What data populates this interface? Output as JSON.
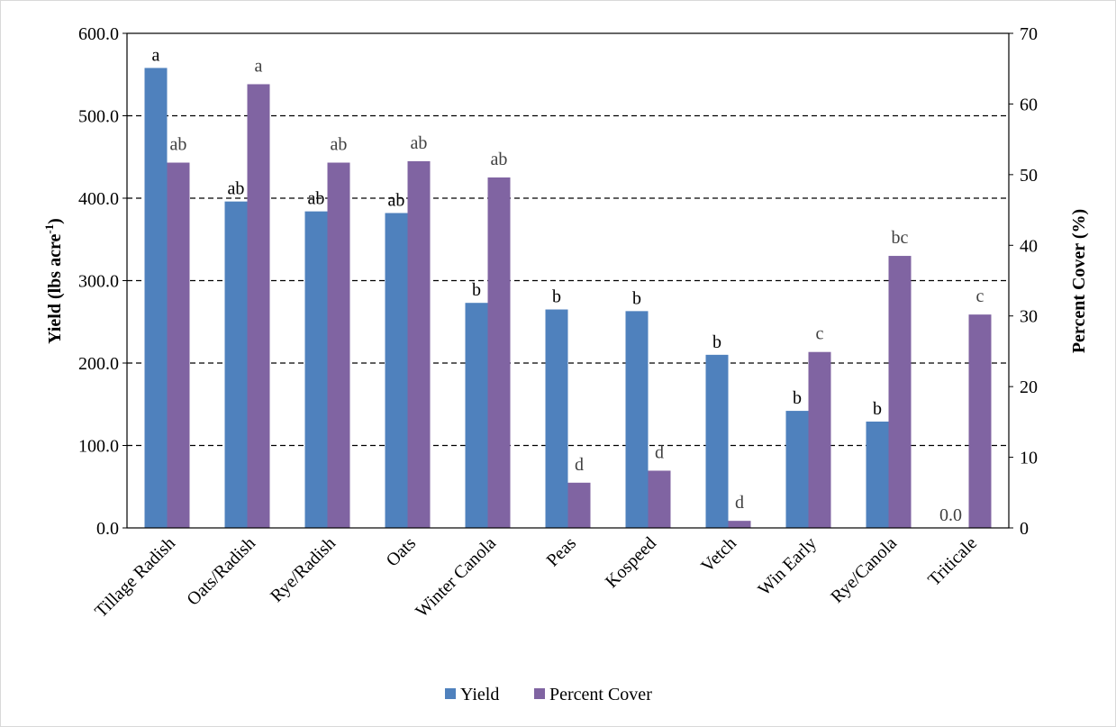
{
  "chart_data": {
    "type": "bar",
    "categories": [
      "Tillage Radish",
      "Oats/Radish",
      "Rye/Radish",
      "Oats",
      "Winter Canola",
      "Peas",
      "Kospeed",
      "Vetch",
      "Win Early",
      "Rye/Canola",
      "Triticale"
    ],
    "series": [
      {
        "name": "Yield",
        "axis": "left",
        "color": "#4f81bd",
        "values": [
          558,
          396,
          384,
          382,
          273,
          265,
          263,
          210,
          142,
          129,
          0
        ],
        "labels": [
          "a",
          "ab",
          "ab",
          "ab",
          "b",
          "b",
          "b",
          "b",
          "b",
          "b",
          "0.0"
        ]
      },
      {
        "name": "Percent Cover",
        "axis": "right",
        "color": "#8064a2",
        "values": [
          51.7,
          62.8,
          51.7,
          51.9,
          49.6,
          6.4,
          8.1,
          1.0,
          24.9,
          38.5,
          30.2
        ],
        "labels": [
          "ab",
          "a",
          "ab",
          "ab",
          "ab",
          "d",
          "d",
          "d",
          "c",
          "bc",
          "c"
        ]
      }
    ],
    "ylabel": "Yield (lbs acre-1)",
    "ylabel_main": "Yield (lbs acre",
    "ylabel_sup": "-1",
    "ylabel_close": ")",
    "y2label": "Percent Cover (%)",
    "ylim": [
      0,
      600
    ],
    "y2lim": [
      0,
      70
    ],
    "yticks": [
      "0.0",
      "100.0",
      "200.0",
      "300.0",
      "400.0",
      "500.0",
      "600.0"
    ],
    "y2ticks": [
      "0",
      "10",
      "20",
      "30",
      "40",
      "50",
      "60",
      "70"
    ],
    "grid": "dashed-horizontal",
    "legend": "bottom-center"
  }
}
